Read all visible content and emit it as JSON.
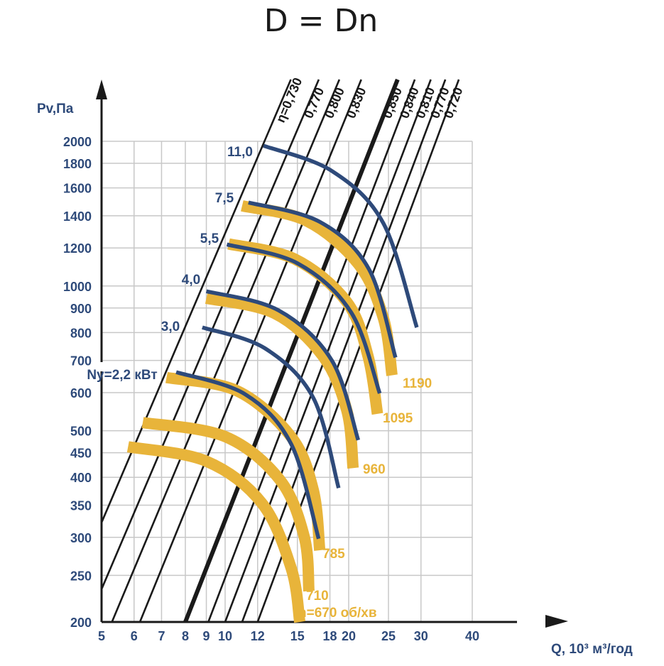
{
  "chart_data": {
    "type": "line",
    "title": "D = Dn",
    "xlabel": "Q, 10³ м³/год",
    "ylabel": "Pv,Па",
    "x_scale": "log",
    "y_scale": "log",
    "xlim": [
      5,
      50
    ],
    "ylim": [
      200,
      2200
    ],
    "x_ticks": [
      5,
      6,
      7,
      8,
      9,
      10,
      12,
      15,
      18,
      20,
      25,
      30,
      40
    ],
    "x_tick_labels": [
      "5",
      "6",
      "7",
      "8",
      "9",
      "10",
      "12",
      "15",
      "18",
      "20",
      "25",
      "30",
      "40"
    ],
    "y_ticks": [
      200,
      250,
      300,
      350,
      400,
      450,
      500,
      600,
      700,
      800,
      900,
      1000,
      1200,
      1400,
      1600,
      1800,
      2000
    ],
    "y_tick_labels": [
      "200",
      "250",
      "300",
      "350",
      "400",
      "450",
      "500",
      "600",
      "700",
      "800",
      "900",
      "1000",
      "1200",
      "1400",
      "1600",
      "1800",
      "2000"
    ],
    "grid": true,
    "efficiency_lines": [
      {
        "label": "η=0,730",
        "bold": false,
        "points": [
          [
            5.0,
            322
          ],
          [
            12.5,
            2010
          ]
        ]
      },
      {
        "label": "0,770",
        "bold": false,
        "points": [
          [
            5.0,
            234
          ],
          [
            15.3,
            2200
          ]
        ]
      },
      {
        "label": "0,800",
        "bold": false,
        "points": [
          [
            5.3,
            200
          ],
          [
            17.2,
            2200
          ]
        ]
      },
      {
        "label": "0,830",
        "bold": false,
        "points": [
          [
            6.2,
            200
          ],
          [
            19.5,
            2200
          ]
        ]
      },
      {
        "label": "0,850",
        "bold": true,
        "points": [
          [
            8.0,
            200
          ],
          [
            24.0,
            2200
          ]
        ]
      },
      {
        "label": "0,840",
        "bold": false,
        "points": [
          [
            9.1,
            200
          ],
          [
            26.5,
            2200
          ]
        ]
      },
      {
        "label": "0,810",
        "bold": false,
        "points": [
          [
            10.0,
            200
          ],
          [
            29.0,
            2200
          ]
        ]
      },
      {
        "label": "0,770",
        "bold": false,
        "points": [
          [
            11.0,
            200
          ],
          [
            31.5,
            2200
          ]
        ]
      },
      {
        "label": "0,720",
        "bold": false,
        "points": [
          [
            12.0,
            200
          ],
          [
            34.0,
            2200
          ]
        ]
      }
    ],
    "speed_curves": [
      {
        "label": "n=670 об/хв",
        "points": [
          [
            5.8,
            463
          ],
          [
            9.0,
            432
          ],
          [
            12.3,
            353
          ],
          [
            14.5,
            258
          ],
          [
            15.2,
            200
          ]
        ]
      },
      {
        "label": "710",
        "points": [
          [
            6.3,
            520
          ],
          [
            10.0,
            486
          ],
          [
            13.6,
            395
          ],
          [
            15.6,
            300
          ],
          [
            16.0,
            232
          ]
        ]
      },
      {
        "label": "785",
        "points": [
          [
            7.2,
            645
          ],
          [
            10.7,
            605
          ],
          [
            14.5,
            485
          ],
          [
            16.4,
            376
          ],
          [
            17.0,
            282
          ]
        ]
      },
      {
        "label": "960",
        "points": [
          [
            9.0,
            943
          ],
          [
            13.2,
            877
          ],
          [
            17.3,
            715
          ],
          [
            19.8,
            550
          ],
          [
            20.5,
            418
          ]
        ]
      },
      {
        "label": "1095",
        "points": [
          [
            10.2,
            1223
          ],
          [
            14.8,
            1137
          ],
          [
            19.8,
            926
          ],
          [
            22.3,
            714
          ],
          [
            23.5,
            542
          ]
        ]
      },
      {
        "label": "1190",
        "points": [
          [
            11.0,
            1468
          ],
          [
            15.8,
            1366
          ],
          [
            21.1,
            1112
          ],
          [
            24.3,
            857
          ],
          [
            25.5,
            652
          ]
        ]
      }
    ],
    "power_curves": [
      {
        "label": "Ny=2,2 кВт",
        "points": [
          [
            7.6,
            662
          ],
          [
            11.2,
            595
          ],
          [
            14.5,
            468
          ],
          [
            16.9,
            298
          ]
        ]
      },
      {
        "label": "3,0",
        "points": [
          [
            8.8,
            820
          ],
          [
            12.5,
            742
          ],
          [
            16.4,
            585
          ],
          [
            18.9,
            380
          ]
        ]
      },
      {
        "label": "4,0",
        "points": [
          [
            9.0,
            975
          ],
          [
            13.5,
            890
          ],
          [
            18.2,
            700
          ],
          [
            21.1,
            478
          ]
        ]
      },
      {
        "label": "5,5",
        "points": [
          [
            10.1,
            1220
          ],
          [
            15.0,
            1115
          ],
          [
            20.3,
            880
          ],
          [
            23.8,
            598
          ]
        ]
      },
      {
        "label": "7,5",
        "points": [
          [
            11.4,
            1492
          ],
          [
            17.0,
            1360
          ],
          [
            22.4,
            1085
          ],
          [
            26.0,
            710
          ]
        ]
      },
      {
        "label": "11,0",
        "points": [
          [
            12.4,
            1958
          ],
          [
            18.2,
            1735
          ],
          [
            24.3,
            1350
          ],
          [
            29.3,
            820
          ]
        ]
      }
    ]
  },
  "colors": {
    "yellow": "#e8b43a",
    "blue": "#2e4a7a",
    "black": "#1a1a1a",
    "grid": "#c8c8c8"
  }
}
